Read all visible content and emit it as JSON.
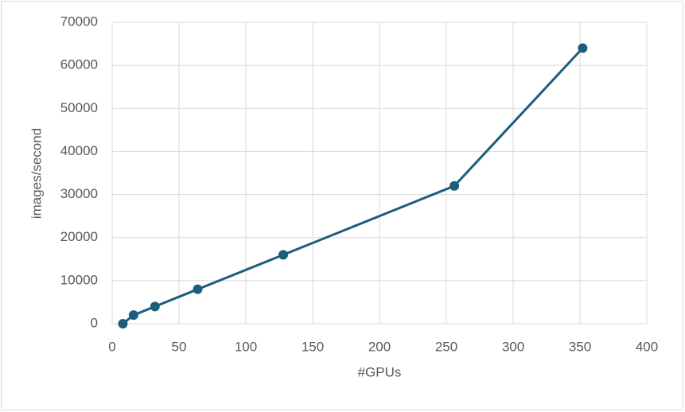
{
  "chart_data": {
    "type": "line",
    "x_label": "#GPUs",
    "y_label": "images/second",
    "x": [
      8,
      16,
      32,
      64,
      128,
      256,
      352
    ],
    "values": [
      0,
      2000,
      4000,
      8000,
      16000,
      32000,
      64000
    ],
    "color": "#1b5e7b",
    "xlim": [
      0,
      400
    ],
    "xticks": [
      0,
      50,
      100,
      150,
      200,
      250,
      300,
      350,
      400
    ],
    "ylim": [
      0,
      70000
    ],
    "yticks": [
      0,
      10000,
      20000,
      30000,
      40000,
      50000,
      60000,
      70000
    ],
    "grid": true
  }
}
